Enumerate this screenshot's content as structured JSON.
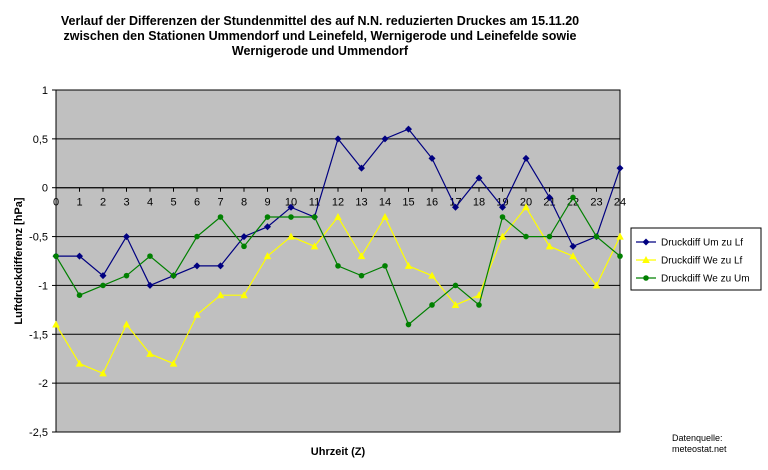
{
  "chart_data": {
    "type": "line",
    "title_lines": [
      "Verlauf der Differenzen der Stundenmittel des auf N.N. reduzierten Druckes am 15.11.20",
      "zwischen den Stationen Ummendorf und Leinefeld, Wernigerode und Leinefelde sowie",
      "Wernigerode und Ummendorf"
    ],
    "xlabel": "Uhrzeit (Z)",
    "ylabel": "Luftdruckdifferenz [hPa]",
    "x": [
      0,
      1,
      2,
      3,
      4,
      5,
      6,
      7,
      8,
      9,
      10,
      11,
      12,
      13,
      14,
      15,
      16,
      17,
      18,
      19,
      20,
      21,
      22,
      23,
      24
    ],
    "x_tick_labels": [
      "0",
      "1",
      "2",
      "3",
      "4",
      "5",
      "6",
      "7",
      "8",
      "9",
      "10",
      "11",
      "12",
      "13",
      "14",
      "15",
      "16",
      "17",
      "18",
      "19",
      "20",
      "21",
      "22",
      "23",
      "24"
    ],
    "ylim": [
      -2.5,
      1
    ],
    "y_ticks": [
      1,
      0.5,
      0,
      -0.5,
      -1,
      -1.5,
      -2,
      -2.5
    ],
    "y_tick_labels": [
      "1",
      "0,5",
      "0",
      "-0,5",
      "-1",
      "-1,5",
      "-2",
      "-2,5"
    ],
    "grid": "horizontal",
    "legend_position": "right",
    "plot_background": "#c0c0c0",
    "series": [
      {
        "name": "Druckdiff Um zu Lf",
        "color": "#000080",
        "marker": "diamond",
        "values": [
          -0.7,
          -0.7,
          -0.9,
          -0.5,
          -1.0,
          -0.9,
          -0.8,
          -0.8,
          -0.5,
          -0.4,
          -0.2,
          -0.3,
          0.5,
          0.2,
          0.5,
          0.6,
          0.3,
          -0.2,
          0.1,
          -0.2,
          0.3,
          -0.1,
          -0.6,
          -0.5,
          0.2
        ]
      },
      {
        "name": "Druckdiff We zu Lf",
        "color": "#ffff00",
        "marker": "triangle",
        "values": [
          -1.4,
          -1.8,
          -1.9,
          -1.4,
          -1.7,
          -1.8,
          -1.3,
          -1.1,
          -1.1,
          -0.7,
          -0.5,
          -0.6,
          -0.3,
          -0.7,
          -0.3,
          -0.8,
          -0.9,
          -1.2,
          -1.1,
          -0.5,
          -0.2,
          -0.6,
          -0.7,
          -1.0,
          -0.5
        ]
      },
      {
        "name": "Druckdiff We zu Um",
        "color": "#008000",
        "marker": "circle",
        "values": [
          -0.7,
          -1.1,
          -1.0,
          -0.9,
          -0.7,
          -0.9,
          -0.5,
          -0.3,
          -0.6,
          -0.3,
          -0.3,
          -0.3,
          -0.8,
          -0.9,
          -0.8,
          -1.4,
          -1.2,
          -1.0,
          -1.2,
          -0.3,
          -0.5,
          -0.5,
          -0.1,
          -0.5,
          -0.7
        ]
      }
    ],
    "source_lines": [
      "Datenquelle:",
      "meteostat.net"
    ]
  }
}
